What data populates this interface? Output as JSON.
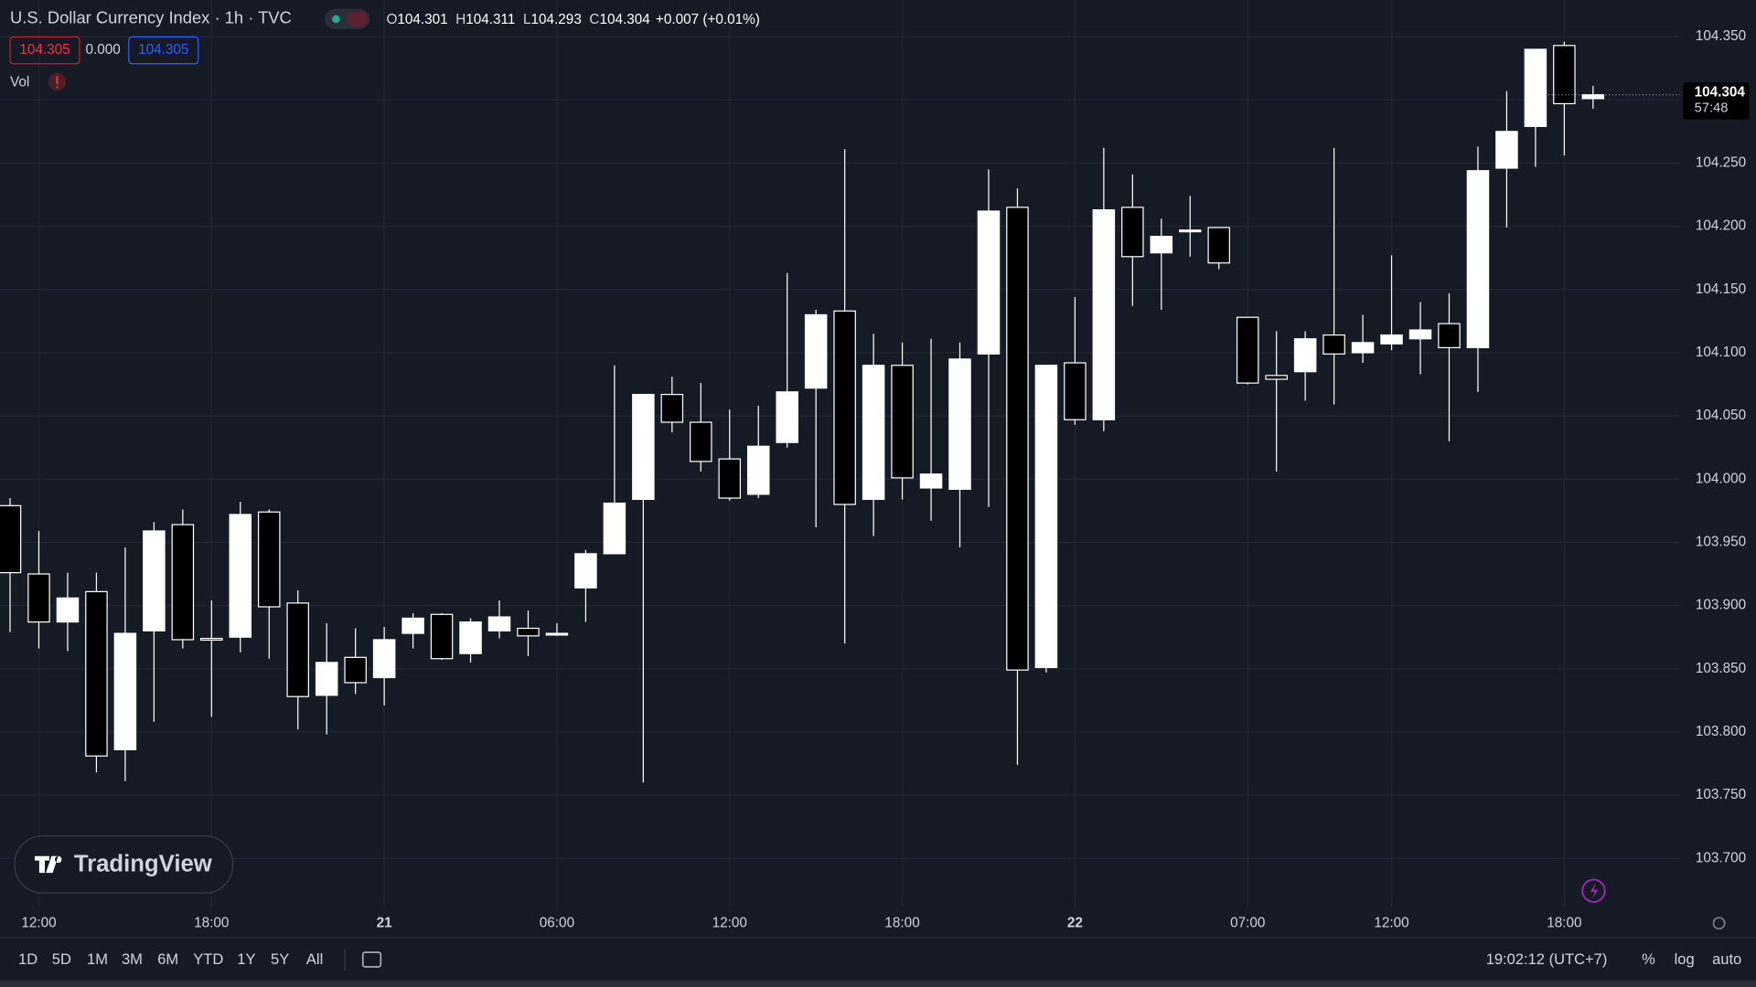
{
  "header": {
    "title": "U.S. Dollar Currency Index · 1h · TVC",
    "ohlc": [
      {
        "key": "O",
        "value": "104.301"
      },
      {
        "key": "H",
        "value": "104.311"
      },
      {
        "key": "L",
        "value": "104.293"
      },
      {
        "key": "C",
        "value": "104.304"
      }
    ],
    "change": "+0.007 (+0.01%)",
    "badges": [
      "104.305",
      "0.000",
      "104.305"
    ],
    "vol": "Vol"
  },
  "chart_data": {
    "type": "candlestick",
    "categories": [
      null,
      "12:00",
      null,
      null,
      null,
      null,
      null,
      "18:00",
      null,
      null,
      null,
      null,
      null,
      "21",
      null,
      null,
      null,
      null,
      null,
      "06:00",
      null,
      null,
      null,
      null,
      null,
      "12:00",
      null,
      null,
      null,
      null,
      null,
      "18:00",
      null,
      null,
      null,
      null,
      null,
      "22",
      null,
      null,
      null,
      null,
      null,
      "07:00",
      null,
      null,
      null,
      null,
      "12:00",
      null,
      null,
      null,
      null,
      null,
      "18:00",
      null
    ],
    "open": [
      103.979,
      103.925,
      103.887,
      103.911,
      103.786,
      103.88,
      103.964,
      103.874,
      103.875,
      103.974,
      103.902,
      103.829,
      103.859,
      103.843,
      103.878,
      103.893,
      103.862,
      103.88,
      103.882,
      103.878,
      103.914,
      103.941,
      103.984,
      104.067,
      104.045,
      104.016,
      103.988,
      104.029,
      104.072,
      104.133,
      103.984,
      104.09,
      103.993,
      103.992,
      104.099,
      104.215,
      103.851,
      104.092,
      104.047,
      104.215,
      104.179,
      104.197,
      104.199,
      104.128,
      104.082,
      104.085,
      104.114,
      104.1,
      104.107,
      104.111,
      104.123,
      104.104,
      104.246,
      104.279,
      104.343,
      104.301
    ],
    "high": [
      103.985,
      103.959,
      103.926,
      103.926,
      103.946,
      103.966,
      103.976,
      103.904,
      103.982,
      103.976,
      103.912,
      103.886,
      103.882,
      103.883,
      103.894,
      103.894,
      103.89,
      103.904,
      103.896,
      103.886,
      103.944,
      104.09,
      104.067,
      104.081,
      104.076,
      104.055,
      104.058,
      104.163,
      104.134,
      104.261,
      104.115,
      104.108,
      104.111,
      104.108,
      104.245,
      104.23,
      104.09,
      104.144,
      104.262,
      104.241,
      104.206,
      104.224,
      104.199,
      104.128,
      104.117,
      104.117,
      104.262,
      104.13,
      104.177,
      104.14,
      104.147,
      104.263,
      104.307,
      104.34,
      104.346,
      104.311
    ],
    "low": [
      103.879,
      103.866,
      103.864,
      103.768,
      103.761,
      103.808,
      103.866,
      103.812,
      103.863,
      103.858,
      103.802,
      103.798,
      103.83,
      103.821,
      103.866,
      103.857,
      103.855,
      103.874,
      103.86,
      103.876,
      103.887,
      103.941,
      103.76,
      104.037,
      104.006,
      103.983,
      103.985,
      104.025,
      103.962,
      103.87,
      103.955,
      103.984,
      103.967,
      103.946,
      103.978,
      103.774,
      103.847,
      104.043,
      104.038,
      104.137,
      104.134,
      104.176,
      104.166,
      104.075,
      104.006,
      104.062,
      104.059,
      104.092,
      104.102,
      104.083,
      104.03,
      104.069,
      104.199,
      104.247,
      104.256,
      104.293
    ],
    "close": [
      103.926,
      103.887,
      103.906,
      103.781,
      103.878,
      103.959,
      103.873,
      103.873,
      103.972,
      103.899,
      103.828,
      103.855,
      103.839,
      103.873,
      103.89,
      103.858,
      103.887,
      103.891,
      103.876,
      103.878,
      103.941,
      103.981,
      104.067,
      104.045,
      104.014,
      103.985,
      104.026,
      104.069,
      104.13,
      103.98,
      104.09,
      104.001,
      104.004,
      104.095,
      104.212,
      103.849,
      104.09,
      104.047,
      104.213,
      104.176,
      104.192,
      104.197,
      104.171,
      104.076,
      104.079,
      104.111,
      104.099,
      104.108,
      104.114,
      104.118,
      104.104,
      104.244,
      104.275,
      104.34,
      104.297,
      104.304
    ],
    "up_color": "#ffffff",
    "down_color": "#000000",
    "wick_color": "#ffffff",
    "ylim": [
      103.662,
      104.379
    ],
    "yticks": [
      {
        "value": 103.7,
        "label": "103.700"
      },
      {
        "value": 103.75,
        "label": "103.750"
      },
      {
        "value": 103.8,
        "label": "103.800"
      },
      {
        "value": 103.85,
        "label": "103.850"
      },
      {
        "value": 103.9,
        "label": "103.900"
      },
      {
        "value": 103.95,
        "label": "103.950"
      },
      {
        "value": 104.0,
        "label": "104.000"
      },
      {
        "value": 104.05,
        "label": "104.050"
      },
      {
        "value": 104.1,
        "label": "104.100"
      },
      {
        "value": 104.15,
        "label": "104.150"
      },
      {
        "value": 104.2,
        "label": "104.200"
      },
      {
        "value": 104.25,
        "label": "104.250"
      },
      {
        "value": 104.3,
        "label": "104.300"
      },
      {
        "value": 104.35,
        "label": "104.350"
      }
    ],
    "grid": true,
    "last_price_label": "104.304",
    "countdown": "57:48"
  },
  "watermark": "TradingView",
  "toolbar": {
    "ranges": [
      "1D",
      "5D",
      "1M",
      "3M",
      "6M",
      "YTD",
      "1Y",
      "5Y",
      "All"
    ],
    "clock": "19:02:12 (UTC+7)",
    "scale_buttons": [
      "%",
      "log",
      "auto"
    ]
  }
}
